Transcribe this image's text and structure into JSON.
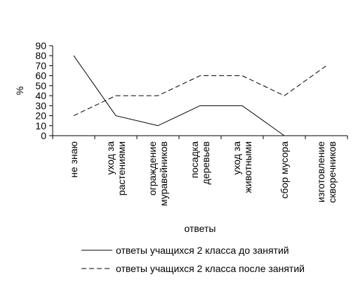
{
  "chart_data": {
    "type": "line",
    "title": "",
    "xlabel": "ответы",
    "ylabel": "%",
    "ylim": [
      0,
      90
    ],
    "ytick_step": 10,
    "grid": false,
    "legend_position": "bottom",
    "categories": [
      [
        "не знаю"
      ],
      [
        "уход за",
        "растениями"
      ],
      [
        "ограждение",
        "муравейников"
      ],
      [
        "посадка",
        "деревьев"
      ],
      [
        "уход за",
        "животными"
      ],
      [
        "сбор мусора"
      ],
      [
        "изготовление",
        "скворечников"
      ]
    ],
    "series": [
      {
        "name": "ответы учащихся 2 класса до занятий",
        "style": "solid",
        "color": "#000000",
        "values": [
          80,
          20,
          10,
          30,
          30,
          0,
          null
        ]
      },
      {
        "name": "ответы учащихся 2 класса после занятий",
        "style": "dashed",
        "color": "#000000",
        "values": [
          20,
          40,
          40,
          60,
          60,
          40,
          70
        ]
      }
    ]
  }
}
